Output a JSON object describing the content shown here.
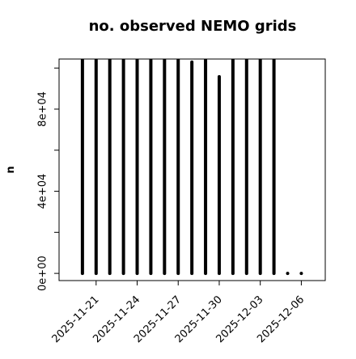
{
  "chart_data": {
    "type": "spike",
    "title": "no. observed NEMO grids",
    "y_label": "n",
    "x": [
      "2025-11-20",
      "2025-11-21",
      "2025-11-22",
      "2025-11-23",
      "2025-11-24",
      "2025-11-25",
      "2025-11-26",
      "2025-11-27",
      "2025-11-28",
      "2025-11-29",
      "2025-11-30",
      "2025-12-01",
      "2025-12-02",
      "2025-12-03",
      "2025-12-04",
      "2025-12-05",
      "2025-12-06"
    ],
    "values": [
      104000,
      104000,
      104000,
      104000,
      104000,
      104000,
      104000,
      104000,
      102900,
      104000,
      95800,
      104000,
      104000,
      104000,
      104000,
      0,
      0
    ],
    "color": "#000000",
    "xlim": [
      "2025-11-18T07:00:00Z",
      "2025-12-07T18:00:00Z"
    ],
    "xticks": [
      "2025-11-21",
      "2025-11-24",
      "2025-11-27",
      "2025-11-30",
      "2025-12-03",
      "2025-12-06"
    ],
    "ylim": [
      -3500,
      104400
    ],
    "yticks": [
      {
        "value": 0,
        "label": "0e+00"
      },
      {
        "value": 20000,
        "label": null
      },
      {
        "value": 40000,
        "label": "4e+04"
      },
      {
        "value": 60000,
        "label": null
      },
      {
        "value": 80000,
        "label": "8e+04"
      },
      {
        "value": 100000,
        "label": null
      }
    ]
  }
}
